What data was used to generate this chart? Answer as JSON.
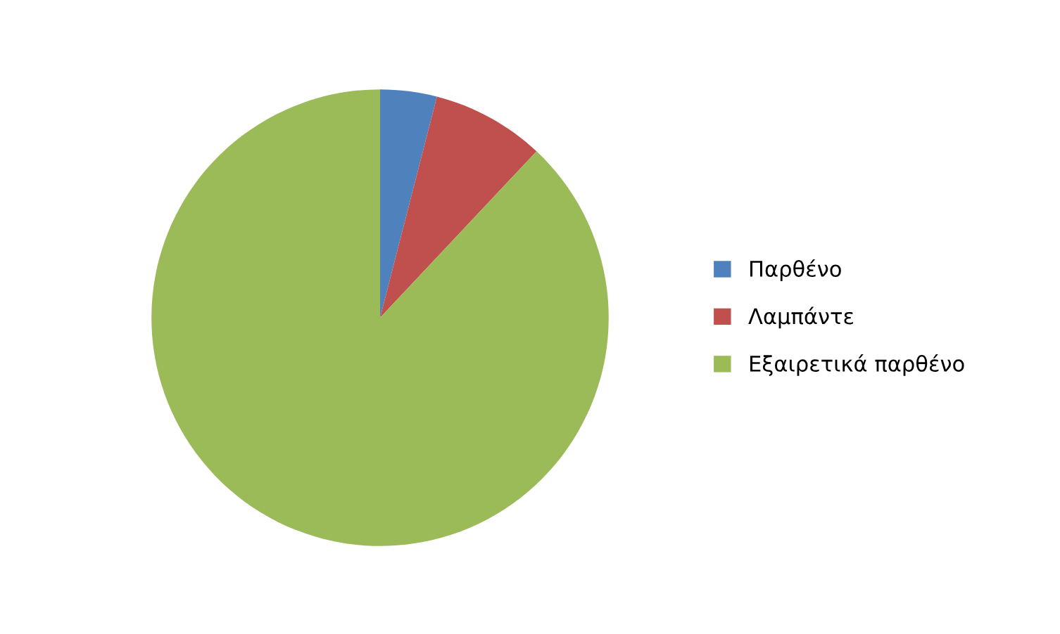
{
  "chart_data": {
    "type": "pie",
    "categories": [
      "Παρθένο",
      "Λαμπάντε",
      "Εξαιρετικά παρθένο"
    ],
    "values": [
      4,
      8,
      88
    ],
    "colors": [
      "#4f81bd",
      "#c0504d",
      "#9bbb59"
    ],
    "legend": "right"
  }
}
